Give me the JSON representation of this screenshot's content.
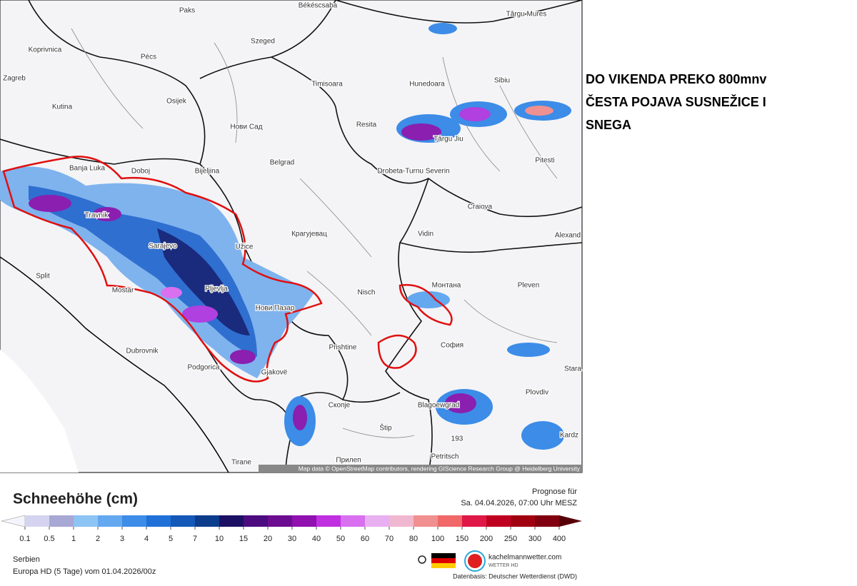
{
  "map": {
    "cities": [
      "Paks",
      "Békéscsaba",
      "Târgu Mures",
      "Koprivnica",
      "Pécs",
      "Szeged",
      "Zagreb",
      "Timisoara",
      "Hunedoara",
      "Sibiu",
      "Kutina",
      "Osijek",
      "Нови Сад",
      "Resita",
      "Târgu Jiu",
      "Pitesti",
      "Banja Luka",
      "Doboj",
      "Bijeljina",
      "Belgrad",
      "Drobeta-Turnu Severin",
      "Craiova",
      "Travnik",
      "Vidin",
      "Alexand",
      "Крагујевац",
      "Sarajevo",
      "Užice",
      "Split",
      "Монтана",
      "Pleven",
      "Mostar",
      "Pljevlja",
      "Nisch",
      "Нови Пазар",
      "София",
      "Dubrovnik",
      "Prishtine",
      "Podgorica",
      "Gjakovë",
      "Stara",
      "Plovdiv",
      "Скопје",
      "Blagoewgrad",
      "Štip",
      "Kardz",
      "Petritsch",
      "Tirane",
      "Прилеп",
      "193"
    ],
    "attribution": "Map data © OpenStreetMap contributors, rendering GIScience Research Group @ Heidelberg University"
  },
  "annotation": [
    "DO VIKENDA PREKO 800mnv",
    "ČESTA POJAVA SUSNEŽICE I",
    "SNEGA"
  ],
  "legend": {
    "title": "Schneehöhe (cm)",
    "labels": [
      0.1,
      0.5,
      1,
      2,
      3,
      4,
      5,
      7,
      10,
      15,
      20,
      30,
      40,
      50,
      60,
      70,
      80,
      100,
      150,
      200,
      250,
      300,
      400
    ],
    "colors": [
      "#f4f4fc",
      "#d4d4f0",
      "#a8a8d4",
      "#8cc4f4",
      "#64a8f0",
      "#3c8ce8",
      "#2070d8",
      "#1458b8",
      "#0c3c8c",
      "#1c1064",
      "#4c0c80",
      "#6c0c90",
      "#9010b0",
      "#c030e0",
      "#d870f0",
      "#e8b0f0",
      "#f0b8d0",
      "#f09090",
      "#f06868",
      "#e01848",
      "#c00020",
      "#a00010",
      "#800010",
      "#580008"
    ]
  },
  "forecast": {
    "label": "Prognose für",
    "time": "Sa. 04.04.2026, 07:00 Uhr MESZ"
  },
  "footer": {
    "region": "Serbien",
    "model": "Europa HD (5 Tage) vom  01.04.2026/00z",
    "site": "kachelmannwetter.com",
    "site_sub": "WETTER HD",
    "source": "Datenbasis: Deutscher Wetterdienst (DWD)"
  }
}
